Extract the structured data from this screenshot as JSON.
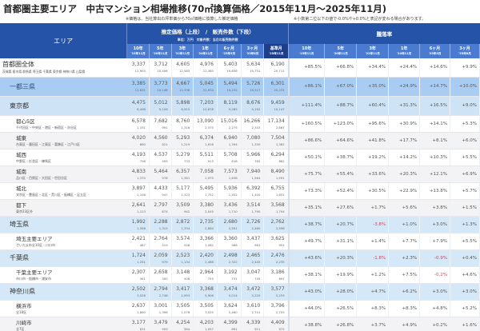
{
  "title": "首都圏主要エリア　中古マンション相場推移(70㎡換算価格／2015年11月～2025年11月)",
  "notes": {
    "price_note": "※価格は、当社算出の坪単価から70㎡価格に換算した推定価格",
    "rate_note": "※小数第二位以下の値で-0.0%や+0.0%と表記が変わる場合があります。"
  },
  "header": {
    "area_label": "エリア",
    "price_title": "推定価格（上段）　/　販売件数（下段）",
    "price_unit": "単位：万円　対象件数：当月の販売物件数",
    "rate_title": "騰落率",
    "price_cols": [
      {
        "top": "10年",
        "bottom": "'15年11月"
      },
      {
        "top": "5年",
        "bottom": "'20年11月"
      },
      {
        "top": "3年",
        "bottom": "'22年11月"
      },
      {
        "top": "1年",
        "bottom": "'24年11月"
      },
      {
        "top": "6ヶ月",
        "bottom": "'25年5月"
      },
      {
        "top": "3ヶ月",
        "bottom": "'25年8月"
      },
      {
        "top": "基準月",
        "bottom": "'25年11月"
      }
    ],
    "rate_cols": [
      {
        "top": "10年",
        "bottom": "'15年11月"
      },
      {
        "top": "5年",
        "bottom": "'20年11月"
      },
      {
        "top": "3年",
        "bottom": "'22年11月"
      },
      {
        "top": "1年",
        "bottom": "'24年11月"
      },
      {
        "top": "6ヶ月",
        "bottom": "'25年5月"
      },
      {
        "top": "3ヶ月",
        "bottom": "'25年8月"
      }
    ]
  },
  "rows": [
    {
      "name": "首都圏全体",
      "sub": "茨城県 栃木県 群馬県 埼玉県 千葉県 東京都 神奈川県 山梨県",
      "prices": [
        "3,337",
        "3,712",
        "4,605",
        "4,976",
        "5,403",
        "5,634",
        "6,190"
      ],
      "counts": [
        "12,904",
        "10,406",
        "12,585",
        "22,365",
        "19,656",
        "19,751",
        "20,711"
      ],
      "rates": [
        "+85.5%",
        "+66.8%",
        "+34.4%",
        "+24.4%",
        "+14.6%",
        "+9.9%"
      ]
    },
    {
      "name": "一都三県",
      "sub": "",
      "prices": [
        "3,385",
        "3,773",
        "4,667",
        "5,045",
        "5,494",
        "5,726",
        "6,301"
      ],
      "counts": [
        "12,631",
        "10,148",
        "12,336",
        "21,934",
        "19,232",
        "19,317",
        "20,231"
      ],
      "rates": [
        "+86.1%",
        "+67.0%",
        "+35.0%",
        "+24.9%",
        "+14.7%",
        "+10.0%"
      ]
    },
    {
      "name": "東京都",
      "sub": "",
      "prices": [
        "4,475",
        "5,012",
        "5,898",
        "7,203",
        "8,119",
        "8,676",
        "9,459"
      ],
      "counts": [
        "6,498",
        "5,106",
        "6,915",
        "10,678",
        "9,285",
        "9,192",
        "10,147"
      ],
      "rates": [
        "+111.4%",
        "+88.7%",
        "+60.4%",
        "+31.3%",
        "+16.5%",
        "+9.0%"
      ]
    },
    {
      "name": "都心5区",
      "sub": "千代田区・中央区・港区・新宿区・渋谷区",
      "prices": [
        "6,578",
        "7,682",
        "8,760",
        "13,090",
        "15,016",
        "16,266",
        "17,134"
      ],
      "counts": [
        "1,331",
        "991",
        "1,316",
        "2,375",
        "2,275",
        "2,343",
        "2,867"
      ],
      "rates": [
        "+160.5%",
        "+123.0%",
        "+95.6%",
        "+30.9%",
        "+14.1%",
        "+5.3%"
      ]
    },
    {
      "name": "城東",
      "sub": "台東区・墨田区・江東区・葛飾区・江戸川区",
      "prices": [
        "4,020",
        "4,560",
        "5,293",
        "6,374",
        "6,940",
        "7,080",
        "7,504"
      ],
      "counts": [
        "860",
        "821",
        "1,219",
        "1,618",
        "1,394",
        "1,330",
        "1,382"
      ],
      "rates": [
        "+86.6%",
        "+64.6%",
        "+41.8%",
        "+17.7%",
        "+8.1%",
        "+6.0%"
      ]
    },
    {
      "name": "城西",
      "sub": "中野区・杉並区・練馬区",
      "prices": [
        "4,193",
        "4,537",
        "5,279",
        "5,511",
        "5,708",
        "5,966",
        "6,294"
      ],
      "counts": [
        "706",
        "495",
        "733",
        "913",
        "818",
        "765",
        "862"
      ],
      "rates": [
        "+50.1%",
        "+38.7%",
        "+19.2%",
        "+14.2%",
        "+10.3%",
        "+5.5%"
      ]
    },
    {
      "name": "城南",
      "sub": "品川区・目黒区・大田区・世田谷区",
      "prices": [
        "4,833",
        "5,464",
        "6,357",
        "7,058",
        "7,573",
        "7,940",
        "8,490"
      ],
      "counts": [
        "1,370",
        "978",
        "1,381",
        "1,975",
        "1,638",
        "1,564",
        "1,591"
      ],
      "rates": [
        "+75.7%",
        "+55.4%",
        "+33.6%",
        "+20.3%",
        "+12.1%",
        "+6.9%"
      ]
    },
    {
      "name": "城北",
      "sub": "文京区・豊島区・北区・荒川区・板橋区・足立区",
      "prices": [
        "3,897",
        "4,433",
        "5,177",
        "5,495",
        "5,936",
        "6,392",
        "6,755"
      ],
      "counts": [
        "1,108",
        "947",
        "1,323",
        "1,752",
        "1,452",
        "1,400",
        "1,651"
      ],
      "rates": [
        "+73.3%",
        "+52.4%",
        "+30.5%",
        "+22.9%",
        "+13.8%",
        "+5.7%"
      ]
    },
    {
      "name": "都下",
      "sub": "東京23区外",
      "prices": [
        "2,641",
        "2,797",
        "3,509",
        "3,380",
        "3,436",
        "3,514",
        "3,568"
      ],
      "counts": [
        "1,123",
        "874",
        "942",
        "2,045",
        "1,710",
        "1,790",
        "1,794"
      ],
      "rates": [
        "+35.1%",
        "+27.6%",
        "+1.7%",
        "+5.6%",
        "+3.8%",
        "+1.5%"
      ]
    },
    {
      "name": "埼玉県",
      "sub": "",
      "prices": [
        "1,992",
        "2,288",
        "2,872",
        "2,735",
        "2,680",
        "2,726",
        "2,762"
      ],
      "counts": [
        "1,356",
        "1,315",
        "1,334",
        "2,864",
        "2,591",
        "2,460",
        "2,596"
      ],
      "rates": [
        "+38.7%",
        "+20.7%",
        "-3.8%",
        "+1.0%",
        "+3.0%",
        "+1.3%"
      ]
    },
    {
      "name": "埼玉主要エリア",
      "sub": "さいたま市全10区・川口市",
      "prices": [
        "2,421",
        "2,764",
        "3,574",
        "3,366",
        "3,360",
        "3,437",
        "3,625"
      ],
      "counts": [
        "487",
        "519",
        "546",
        "1,082",
        "968",
        "961",
        "951"
      ],
      "rates": [
        "+49.7%",
        "+31.1%",
        "+1.4%",
        "+7.7%",
        "+7.9%",
        "+5.5%"
      ]
    },
    {
      "name": "千葉県",
      "sub": "",
      "prices": [
        "1,724",
        "2,059",
        "2,523",
        "2,420",
        "2,498",
        "2,465",
        "2,476"
      ],
      "counts": [
        "1,251",
        "979",
        "1,134",
        "2,486",
        "2,322",
        "2,445",
        "2,235"
      ],
      "rates": [
        "+43.6%",
        "+20.3%",
        "-1.8%",
        "+2.3%",
        "-0.9%",
        "+0.4%"
      ]
    },
    {
      "name": "千葉主要エリア",
      "sub": "市川市・船橋市・浦安市",
      "prices": [
        "2,307",
        "2,658",
        "3,148",
        "2,964",
        "3,192",
        "3,047",
        "3,186"
      ],
      "counts": [
        "361",
        "300",
        "408",
        "753",
        "731",
        "745",
        "697"
      ],
      "rates": [
        "+38.1%",
        "+19.9%",
        "+1.2%",
        "+7.5%",
        "-0.2%",
        "+4.6%"
      ]
    },
    {
      "name": "神奈川県",
      "sub": "",
      "prices": [
        "2,502",
        "2,794",
        "3,417",
        "3,368",
        "3,474",
        "3,472",
        "3,577"
      ],
      "counts": [
        "3,526",
        "2,748",
        "2,953",
        "5,906",
        "5,014",
        "5,220",
        "5,253"
      ],
      "rates": [
        "+43.0%",
        "+28.0%",
        "+4.7%",
        "+6.2%",
        "+3.0%",
        "+3.0%"
      ]
    },
    {
      "name": "横浜市",
      "sub": "全18区",
      "prices": [
        "2,637",
        "3,001",
        "3,505",
        "3,505",
        "3,624",
        "3,610",
        "3,796"
      ],
      "counts": [
        "1,860",
        "1,396",
        "1,576",
        "3,025",
        "2,460",
        "2,741",
        "2,705"
      ],
      "rates": [
        "+44.0%",
        "+26.5%",
        "+8.3%",
        "+8.3%",
        "+4.8%",
        "+5.2%"
      ]
    },
    {
      "name": "川崎市",
      "sub": "全7区",
      "prices": [
        "3,177",
        "3,479",
        "4,254",
        "4,203",
        "4,399",
        "4,339",
        "4,409"
      ],
      "counts": [
        "631",
        "509",
        "564",
        "1,057",
        "891",
        "921",
        "972"
      ],
      "rates": [
        "+38.8%",
        "+26.8%",
        "+3.7%",
        "+4.9%",
        "+0.2%",
        "+1.6%"
      ]
    }
  ],
  "colors": {
    "header_dark": "#2553a8",
    "header_sub": "#4a7bd0",
    "header_base": "#1d3f8a",
    "negative": "#e0405a",
    "row_blue": "#a9cdf2",
    "row_lightblue": "#cfe3f6"
  }
}
